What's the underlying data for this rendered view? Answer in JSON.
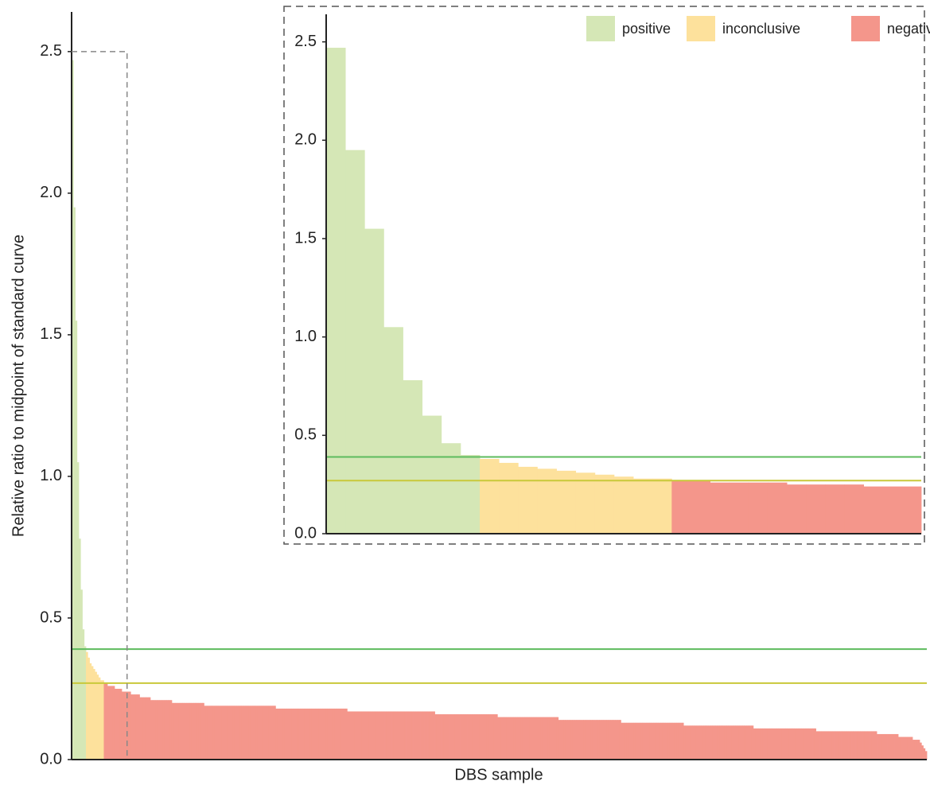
{
  "chart_data": {
    "type": "bar",
    "y_label": "Relative ratio to midpoint of standard curve",
    "x_label": "DBS sample",
    "ylim": [
      0,
      2.64
    ],
    "yticks": [
      {
        "value": 0,
        "label": "0.0"
      },
      0.5,
      {
        "value": 1,
        "label": "1.0"
      },
      1.5,
      {
        "value": 2,
        "label": "2.0"
      },
      2.5
    ],
    "legend": "top-right",
    "thresholds": [
      {
        "value": 0.39,
        "color": "#5dbb5d"
      },
      {
        "value": 0.27,
        "color": "#c9c83a"
      }
    ],
    "inset": {
      "xlim": [
        0,
        31
      ],
      "ylim": [
        0,
        2.64
      ],
      "yticks": [
        {
          "value": 0,
          "label": "0.0"
        },
        0.5,
        {
          "value": 1,
          "label": "1.0"
        },
        1.5,
        {
          "value": 2,
          "label": "2.0"
        },
        2.5
      ]
    },
    "series": [
      {
        "name": "positive",
        "color": "#d5e7b6",
        "values": [
          2.47,
          1.95,
          1.55,
          1.05,
          0.78,
          0.6,
          0.46,
          0.4
        ]
      },
      {
        "name": "inconclusive",
        "color": "#fde19c",
        "values": [
          0.38,
          0.36,
          0.34,
          0.33,
          0.32,
          0.31,
          0.3,
          0.29,
          0.28,
          0.28
        ]
      },
      {
        "name": "negative",
        "color": "#f4968b",
        "values": [
          0.27,
          0.27,
          0.26,
          0.26,
          0.26,
          0.26,
          0.25,
          0.25,
          0.25,
          0.25,
          0.24,
          0.24,
          0.24,
          0.24,
          0.24,
          0.23,
          0.23,
          0.23,
          0.23,
          0.23,
          0.22,
          0.22,
          0.22,
          0.22,
          0.22,
          0.22,
          0.21,
          0.21,
          0.21,
          0.21,
          0.21,
          0.21,
          0.21,
          0.21,
          0.21,
          0.21,
          0.21,
          0.21,
          0.2,
          0.2,
          0.2,
          0.2,
          0.2,
          0.2,
          0.2,
          0.2,
          0.2,
          0.2,
          0.2,
          0.2,
          0.2,
          0.2,
          0.2,
          0.2,
          0.2,
          0.2,
          0.19,
          0.19,
          0.19,
          0.19,
          0.19,
          0.19,
          0.19,
          0.19,
          0.19,
          0.19,
          0.19,
          0.19,
          0.19,
          0.19,
          0.19,
          0.19,
          0.19,
          0.19,
          0.19,
          0.19,
          0.19,
          0.19,
          0.19,
          0.19,
          0.19,
          0.19,
          0.19,
          0.19,
          0.19,
          0.19,
          0.19,
          0.19,
          0.19,
          0.19,
          0.19,
          0.19,
          0.19,
          0.19,
          0.19,
          0.19,
          0.18,
          0.18,
          0.18,
          0.18,
          0.18,
          0.18,
          0.18,
          0.18,
          0.18,
          0.18,
          0.18,
          0.18,
          0.18,
          0.18,
          0.18,
          0.18,
          0.18,
          0.18,
          0.18,
          0.18,
          0.18,
          0.18,
          0.18,
          0.18,
          0.18,
          0.18,
          0.18,
          0.18,
          0.18,
          0.18,
          0.18,
          0.18,
          0.18,
          0.18,
          0.18,
          0.18,
          0.18,
          0.18,
          0.18,
          0.18,
          0.17,
          0.17,
          0.17,
          0.17,
          0.17,
          0.17,
          0.17,
          0.17,
          0.17,
          0.17,
          0.17,
          0.17,
          0.17,
          0.17,
          0.17,
          0.17,
          0.17,
          0.17,
          0.17,
          0.17,
          0.17,
          0.17,
          0.17,
          0.17,
          0.17,
          0.17,
          0.17,
          0.17,
          0.17,
          0.17,
          0.17,
          0.17,
          0.17,
          0.17,
          0.17,
          0.17,
          0.17,
          0.17,
          0.17,
          0.17,
          0.17,
          0.17,
          0.17,
          0.17,
          0.17,
          0.17,
          0.17,
          0.17,
          0.17,
          0.16,
          0.16,
          0.16,
          0.16,
          0.16,
          0.16,
          0.16,
          0.16,
          0.16,
          0.16,
          0.16,
          0.16,
          0.16,
          0.16,
          0.16,
          0.16,
          0.16,
          0.16,
          0.16,
          0.16,
          0.16,
          0.16,
          0.16,
          0.16,
          0.16,
          0.16,
          0.16,
          0.16,
          0.16,
          0.16,
          0.16,
          0.16,
          0.16,
          0.16,
          0.16,
          0.15,
          0.15,
          0.15,
          0.15,
          0.15,
          0.15,
          0.15,
          0.15,
          0.15,
          0.15,
          0.15,
          0.15,
          0.15,
          0.15,
          0.15,
          0.15,
          0.15,
          0.15,
          0.15,
          0.15,
          0.15,
          0.15,
          0.15,
          0.15,
          0.15,
          0.15,
          0.15,
          0.15,
          0.15,
          0.15,
          0.15,
          0.15,
          0.15,
          0.15,
          0.14,
          0.14,
          0.14,
          0.14,
          0.14,
          0.14,
          0.14,
          0.14,
          0.14,
          0.14,
          0.14,
          0.14,
          0.14,
          0.14,
          0.14,
          0.14,
          0.14,
          0.14,
          0.14,
          0.14,
          0.14,
          0.14,
          0.14,
          0.14,
          0.14,
          0.14,
          0.14,
          0.14,
          0.14,
          0.14,
          0.14,
          0.14,
          0.14,
          0.14,
          0.14,
          0.13,
          0.13,
          0.13,
          0.13,
          0.13,
          0.13,
          0.13,
          0.13,
          0.13,
          0.13,
          0.13,
          0.13,
          0.13,
          0.13,
          0.13,
          0.13,
          0.13,
          0.13,
          0.13,
          0.13,
          0.13,
          0.13,
          0.13,
          0.13,
          0.13,
          0.13,
          0.13,
          0.13,
          0.13,
          0.13,
          0.13,
          0.13,
          0.13,
          0.13,
          0.13,
          0.12,
          0.12,
          0.12,
          0.12,
          0.12,
          0.12,
          0.12,
          0.12,
          0.12,
          0.12,
          0.12,
          0.12,
          0.12,
          0.12,
          0.12,
          0.12,
          0.12,
          0.12,
          0.12,
          0.12,
          0.12,
          0.12,
          0.12,
          0.12,
          0.12,
          0.12,
          0.12,
          0.12,
          0.12,
          0.12,
          0.12,
          0.12,
          0.12,
          0.12,
          0.12,
          0.12,
          0.12,
          0.12,
          0.12,
          0.11,
          0.11,
          0.11,
          0.11,
          0.11,
          0.11,
          0.11,
          0.11,
          0.11,
          0.11,
          0.11,
          0.11,
          0.11,
          0.11,
          0.11,
          0.11,
          0.11,
          0.11,
          0.11,
          0.11,
          0.11,
          0.11,
          0.11,
          0.11,
          0.11,
          0.11,
          0.11,
          0.11,
          0.11,
          0.11,
          0.11,
          0.11,
          0.11,
          0.11,
          0.11,
          0.1,
          0.1,
          0.1,
          0.1,
          0.1,
          0.1,
          0.1,
          0.1,
          0.1,
          0.1,
          0.1,
          0.1,
          0.1,
          0.1,
          0.1,
          0.1,
          0.1,
          0.1,
          0.1,
          0.1,
          0.1,
          0.1,
          0.1,
          0.1,
          0.1,
          0.1,
          0.1,
          0.1,
          0.1,
          0.1,
          0.1,
          0.1,
          0.1,
          0.1,
          0.09,
          0.09,
          0.09,
          0.09,
          0.09,
          0.09,
          0.09,
          0.09,
          0.09,
          0.09,
          0.09,
          0.09,
          0.08,
          0.08,
          0.08,
          0.08,
          0.08,
          0.08,
          0.08,
          0.08,
          0.07,
          0.07,
          0.07,
          0.07,
          0.06,
          0.05,
          0.04,
          0.03
        ]
      }
    ]
  }
}
